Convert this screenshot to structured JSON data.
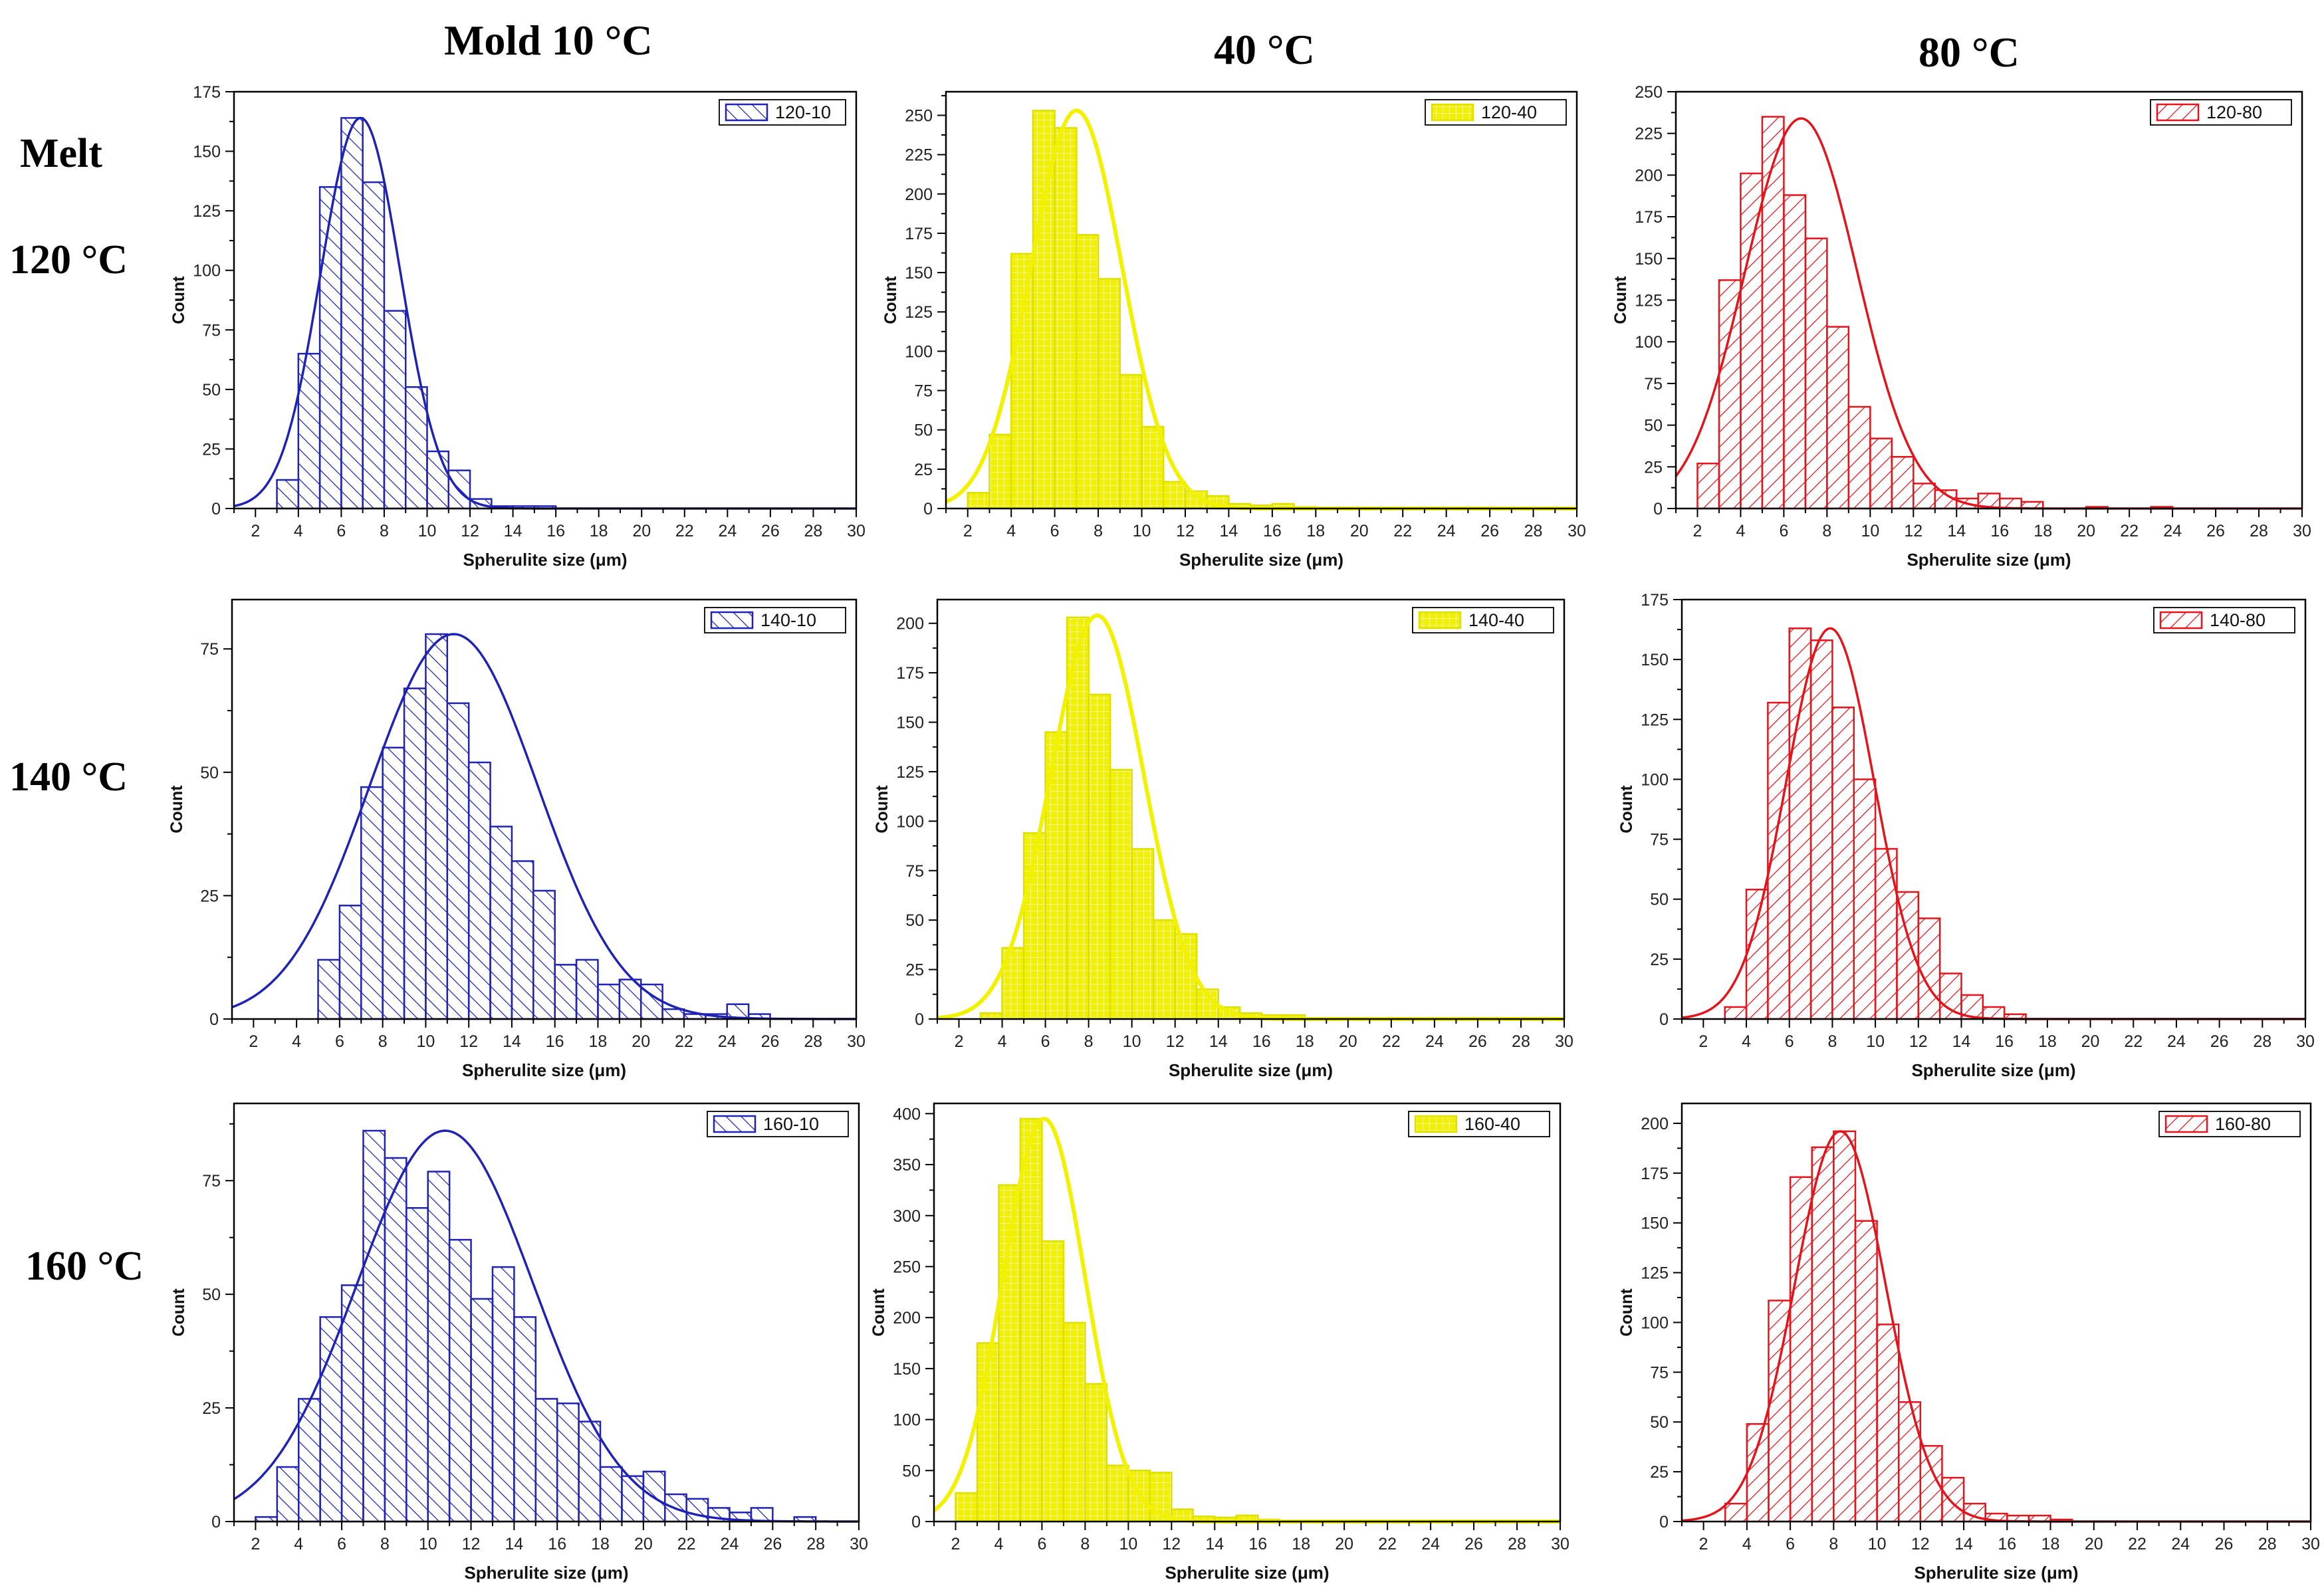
{
  "headers": {
    "col1": "Mold 10 °C",
    "col2": "40 °C",
    "col3": "80 °C",
    "melt": "Melt",
    "row1": "120 °C",
    "row2": "140 °C",
    "row3": "160 °C"
  },
  "colors": {
    "blue": "#1f23b5",
    "yellow": "#f0f000",
    "red": "#e3141b"
  },
  "chart_data": [
    {
      "type": "bar",
      "name": "120-10",
      "legend": "120-10",
      "color": "#1f23b5",
      "xlabel": "Spherulite size (μm)",
      "ylabel": "Count",
      "xlim": [
        1,
        30
      ],
      "ylim": [
        0,
        175
      ],
      "xticks": [
        2,
        4,
        6,
        8,
        10,
        12,
        14,
        16,
        18,
        20,
        22,
        24,
        26,
        28,
        30
      ],
      "yticks": [
        0,
        25,
        50,
        75,
        100,
        125,
        150,
        175
      ],
      "bin_width": 1,
      "bins": [
        3,
        4,
        5,
        6,
        7,
        8,
        9,
        10,
        11,
        12,
        13,
        14,
        15
      ],
      "values": [
        12,
        65,
        135,
        164,
        137,
        83,
        51,
        24,
        16,
        4,
        1,
        1,
        1
      ],
      "fit": {
        "mean": 6.9,
        "sd": 1.85,
        "peak": 164
      }
    },
    {
      "type": "bar",
      "name": "120-40",
      "legend": "120-40",
      "color": "#f0f000",
      "xlabel": "Spherulite size (μm)",
      "ylabel": "Count",
      "xlim": [
        1,
        30
      ],
      "ylim": [
        0,
        265
      ],
      "xticks": [
        2,
        4,
        6,
        8,
        10,
        12,
        14,
        16,
        18,
        20,
        22,
        24,
        26,
        28,
        30
      ],
      "yticks": [
        0,
        25,
        50,
        75,
        100,
        125,
        150,
        175,
        200,
        225,
        250
      ],
      "bin_width": 1,
      "bins": [
        2,
        3,
        4,
        5,
        6,
        7,
        8,
        9,
        10,
        11,
        12,
        13,
        14,
        15,
        16,
        17
      ],
      "values": [
        10,
        47,
        162,
        253,
        242,
        174,
        146,
        85,
        52,
        17,
        11,
        8,
        3,
        2,
        3,
        1
      ],
      "fit": {
        "mean": 7.0,
        "sd": 2.1,
        "peak": 253
      }
    },
    {
      "type": "bar",
      "name": "120-80",
      "legend": "120-80",
      "color": "#e3141b",
      "xlabel": "Spherulite size (μm)",
      "ylabel": "Count",
      "xlim": [
        1,
        30
      ],
      "ylim": [
        0,
        250
      ],
      "xticks": [
        2,
        4,
        6,
        8,
        10,
        12,
        14,
        16,
        18,
        20,
        22,
        24,
        26,
        28,
        30
      ],
      "yticks": [
        0,
        25,
        50,
        75,
        100,
        125,
        150,
        175,
        200,
        225,
        250
      ],
      "bin_width": 1,
      "bins": [
        2,
        3,
        4,
        5,
        6,
        7,
        8,
        9,
        10,
        11,
        12,
        13,
        14,
        15,
        16,
        17,
        20,
        23
      ],
      "values": [
        27,
        137,
        201,
        235,
        188,
        162,
        109,
        61,
        42,
        31,
        15,
        11,
        6,
        9,
        6,
        4,
        1,
        1
      ],
      "fit": {
        "mean": 6.8,
        "sd": 2.6,
        "peak": 234
      }
    },
    {
      "type": "bar",
      "name": "140-10",
      "legend": "140-10",
      "color": "#1f23b5",
      "xlabel": "Spherulite size (μm)",
      "ylabel": "Count",
      "xlim": [
        1,
        30
      ],
      "ylim": [
        0,
        85
      ],
      "xticks": [
        2,
        4,
        6,
        8,
        10,
        12,
        14,
        16,
        18,
        20,
        22,
        24,
        26,
        28,
        30
      ],
      "yticks": [
        0,
        25,
        50,
        75
      ],
      "bin_width": 1,
      "bins": [
        5,
        6,
        7,
        8,
        9,
        10,
        11,
        12,
        13,
        14,
        15,
        16,
        17,
        18,
        19,
        20,
        21,
        22,
        23,
        24,
        25
      ],
      "values": [
        12,
        23,
        47,
        55,
        67,
        78,
        64,
        52,
        39,
        32,
        26,
        11,
        12,
        7,
        8,
        7,
        2,
        1,
        1,
        3,
        1
      ],
      "fit": {
        "mean": 11.3,
        "sd": 3.9,
        "peak": 78
      }
    },
    {
      "type": "bar",
      "name": "140-40",
      "legend": "140-40",
      "color": "#f0f000",
      "xlabel": "Spherulite size (μm)",
      "ylabel": "Count",
      "xlim": [
        1,
        30
      ],
      "ylim": [
        0,
        212
      ],
      "xticks": [
        2,
        4,
        6,
        8,
        10,
        12,
        14,
        16,
        18,
        20,
        22,
        24,
        26,
        28,
        30
      ],
      "yticks": [
        0,
        25,
        50,
        75,
        100,
        125,
        150,
        175,
        200
      ],
      "bin_width": 1,
      "bins": [
        3,
        4,
        5,
        6,
        7,
        8,
        9,
        10,
        11,
        12,
        13,
        14,
        15,
        16,
        17
      ],
      "values": [
        3,
        36,
        94,
        145,
        203,
        164,
        126,
        86,
        50,
        43,
        15,
        6,
        3,
        2,
        2
      ],
      "fit": {
        "mean": 8.4,
        "sd": 2.15,
        "peak": 204
      }
    },
    {
      "type": "bar",
      "name": "140-80",
      "legend": "140-80",
      "color": "#e3141b",
      "xlabel": "Spherulite size (μm)",
      "ylabel": "Count",
      "xlim": [
        1,
        30
      ],
      "ylim": [
        0,
        175
      ],
      "xticks": [
        2,
        4,
        6,
        8,
        10,
        12,
        14,
        16,
        18,
        20,
        22,
        24,
        26,
        28,
        30
      ],
      "yticks": [
        0,
        25,
        50,
        75,
        100,
        125,
        150,
        175
      ],
      "bin_width": 1,
      "bins": [
        3,
        4,
        5,
        6,
        7,
        8,
        9,
        10,
        11,
        12,
        13,
        14,
        15,
        16
      ],
      "values": [
        5,
        54,
        132,
        163,
        158,
        130,
        100,
        71,
        53,
        42,
        19,
        10,
        5,
        2
      ],
      "fit": {
        "mean": 7.9,
        "sd": 2.05,
        "peak": 163
      }
    },
    {
      "type": "bar",
      "name": "160-10",
      "legend": "160-10",
      "color": "#1f23b5",
      "xlabel": "Spherulite size (μm)",
      "ylabel": "Count",
      "xlim": [
        1,
        30
      ],
      "ylim": [
        0,
        92
      ],
      "xticks": [
        2,
        4,
        6,
        8,
        10,
        12,
        14,
        16,
        18,
        20,
        22,
        24,
        26,
        28,
        30
      ],
      "yticks": [
        0,
        25,
        50,
        75
      ],
      "bin_width": 1,
      "bins": [
        2,
        3,
        4,
        5,
        6,
        7,
        8,
        9,
        10,
        11,
        12,
        13,
        14,
        15,
        16,
        17,
        18,
        19,
        20,
        21,
        22,
        23,
        24,
        25,
        27
      ],
      "values": [
        1,
        12,
        27,
        45,
        52,
        86,
        80,
        69,
        77,
        62,
        49,
        56,
        45,
        27,
        26,
        22,
        12,
        10,
        11,
        6,
        5,
        3,
        2,
        3,
        1
      ],
      "fit": {
        "mean": 10.8,
        "sd": 4.1,
        "peak": 86
      }
    },
    {
      "type": "bar",
      "name": "160-40",
      "legend": "160-40",
      "color": "#f0f000",
      "xlabel": "Spherulite size (μm)",
      "ylabel": "Count",
      "xlim": [
        1,
        30
      ],
      "ylim": [
        0,
        410
      ],
      "xticks": [
        2,
        4,
        6,
        8,
        10,
        12,
        14,
        16,
        18,
        20,
        22,
        24,
        26,
        28,
        30
      ],
      "yticks": [
        0,
        50,
        100,
        150,
        200,
        250,
        300,
        350,
        400
      ],
      "bin_width": 1,
      "bins": [
        2,
        3,
        4,
        5,
        6,
        7,
        8,
        9,
        10,
        11,
        12,
        13,
        14,
        15,
        16,
        17
      ],
      "values": [
        28,
        175,
        330,
        395,
        275,
        195,
        135,
        55,
        50,
        48,
        12,
        5,
        4,
        6,
        2,
        1
      ],
      "fit": {
        "mean": 6.1,
        "sd": 1.9,
        "peak": 395
      }
    },
    {
      "type": "bar",
      "name": "160-80",
      "legend": "160-80",
      "color": "#e3141b",
      "xlabel": "Spherulite size (μm)",
      "ylabel": "Count",
      "xlim": [
        1,
        30
      ],
      "ylim": [
        0,
        210
      ],
      "xticks": [
        2,
        4,
        6,
        8,
        10,
        12,
        14,
        16,
        18,
        20,
        22,
        24,
        26,
        28,
        30
      ],
      "yticks": [
        0,
        25,
        50,
        75,
        100,
        125,
        150,
        175,
        200
      ],
      "bin_width": 1,
      "bins": [
        3,
        4,
        5,
        6,
        7,
        8,
        9,
        10,
        11,
        12,
        13,
        14,
        15,
        16,
        17,
        18
      ],
      "values": [
        9,
        49,
        111,
        173,
        188,
        196,
        151,
        99,
        60,
        38,
        22,
        9,
        4,
        3,
        3,
        1
      ],
      "fit": {
        "mean": 8.3,
        "sd": 2.1,
        "peak": 196
      }
    }
  ]
}
